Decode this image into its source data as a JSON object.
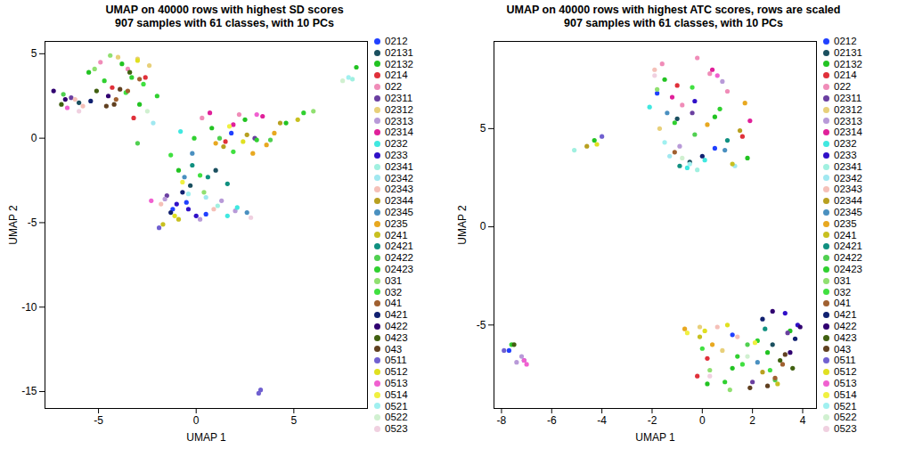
{
  "chart_data": [
    {
      "type": "scatter",
      "title": "UMAP on 40000 rows with highest SD scores",
      "subtitle": "907 samples with 61 classes, with 10 PCs",
      "x_label": "UMAP 1",
      "y_label": "UMAP 2",
      "xlim": [
        -7.74,
        8.77
      ],
      "ylim": [
        -16.0,
        5.73
      ],
      "xticks": [
        -5,
        0,
        5
      ],
      "yticks": [
        -15,
        -10,
        -5,
        0,
        5
      ],
      "legend": "right",
      "series": [
        {
          "name": "0212",
          "color": "#2040ff",
          "x": [
            -1.2,
            0.5,
            1.8,
            -0.5
          ],
          "y": [
            -4.2,
            -4.5,
            0.3,
            -3.8
          ]
        },
        {
          "name": "02131",
          "color": "#1a4f5f",
          "x": [
            -0.3,
            1.0,
            -6.0
          ],
          "y": [
            -2.8,
            -1.9,
            2.1
          ]
        },
        {
          "name": "02132",
          "color": "#22c322",
          "x": [
            -5.5,
            -3.8,
            -2.9,
            0.8,
            2.5,
            8.2,
            -0.9,
            4.6
          ],
          "y": [
            3.9,
            4.4,
            2.0,
            0.6,
            1.1,
            4.2,
            -1.9,
            0.9
          ]
        },
        {
          "name": "0214",
          "color": "#e0303a",
          "x": [
            -2.6,
            -4.3,
            1.5,
            -3.2
          ],
          "y": [
            3.6,
            3.0,
            -0.2,
            1.2
          ]
        },
        {
          "name": "022",
          "color": "#f08cb8",
          "x": [
            -4.9,
            -3.5,
            0.3,
            2.2
          ],
          "y": [
            4.5,
            4.1,
            1.2,
            1.4
          ]
        },
        {
          "name": "02311",
          "color": "#6a3fa0",
          "x": [
            -6.4,
            -1.5,
            3.0
          ],
          "y": [
            2.4,
            -3.4,
            0.0
          ]
        },
        {
          "name": "02312",
          "color": "#e8d07a",
          "x": [
            -4.0,
            -3.0,
            -2.4
          ],
          "y": [
            4.8,
            4.7,
            4.3
          ]
        },
        {
          "name": "02313",
          "color": "#b89ad8",
          "x": [
            -1.6,
            0.2,
            2.0,
            1.3
          ],
          "y": [
            -3.6,
            -4.8,
            -4.3,
            -3.7
          ]
        },
        {
          "name": "02314",
          "color": "#e0209a",
          "x": [
            0.7,
            1.9,
            3.4
          ],
          "y": [
            1.5,
            0.8,
            1.3
          ]
        },
        {
          "name": "0232",
          "color": "#40e8e0",
          "x": [
            1.6,
            -0.8,
            2.1
          ],
          "y": [
            -4.6,
            0.4,
            -4.1
          ]
        },
        {
          "name": "0233",
          "color": "#3010c8",
          "x": [
            -1.0,
            0.0,
            -0.4
          ],
          "y": [
            -3.9,
            -4.6,
            -4.2
          ]
        },
        {
          "name": "02341",
          "color": "#a0f0e0",
          "x": [
            1.1,
            8.0
          ],
          "y": [
            -4.0,
            3.5
          ]
        },
        {
          "name": "02342",
          "color": "#a0e8f0",
          "x": [
            0.5,
            -2.2
          ],
          "y": [
            -3.5,
            0.9
          ]
        },
        {
          "name": "02343",
          "color": "#f5c0b8",
          "x": [
            -5.8,
            -6.2,
            -1.8,
            0.9
          ],
          "y": [
            1.9,
            2.3,
            -3.9,
            -4.2
          ]
        },
        {
          "name": "02344",
          "color": "#b8a020",
          "x": [
            2.6,
            4.3,
            1.4
          ],
          "y": [
            0.2,
            0.9,
            -0.5
          ]
        },
        {
          "name": "02345",
          "color": "#4a90c0",
          "x": [
            -0.6,
            2.6,
            -0.2
          ],
          "y": [
            -2.3,
            -4.4,
            -0.9
          ]
        },
        {
          "name": "0235",
          "color": "#e8a820",
          "x": [
            1.0,
            3.6,
            4.0,
            2.9
          ],
          "y": [
            -0.3,
            -0.4,
            0.3,
            -0.9
          ]
        },
        {
          "name": "0241",
          "color": "#c8c020",
          "x": [
            -0.9,
            5.2,
            -1.7
          ],
          "y": [
            -4.8,
            1.1,
            -5.1
          ]
        },
        {
          "name": "02421",
          "color": "#109080",
          "x": [
            -0.2,
            0.6,
            1.6
          ],
          "y": [
            -1.6,
            -2.3,
            -2.7
          ]
        },
        {
          "name": "02422",
          "color": "#50d050",
          "x": [
            -6.8,
            -3.0,
            1.2,
            3.8
          ],
          "y": [
            2.6,
            -0.3,
            0.0,
            -0.1
          ]
        },
        {
          "name": "02423",
          "color": "#30d030",
          "x": [
            -4.7,
            -3.3,
            -2.0,
            -0.1,
            5.5,
            3.1
          ],
          "y": [
            3.4,
            3.6,
            2.5,
            0.0,
            1.5,
            -0.1
          ]
        },
        {
          "name": "031",
          "color": "#90e070",
          "x": [
            -5.2,
            -4.4,
            0.4,
            6.0
          ],
          "y": [
            4.1,
            4.9,
            -3.2,
            1.6
          ]
        },
        {
          "name": "032",
          "color": "#40e040",
          "x": [
            -3.6,
            -2.7,
            1.9,
            -1.3,
            0.2
          ],
          "y": [
            2.7,
            3.2,
            -0.8,
            -1.0,
            -2.2
          ]
        },
        {
          "name": "041",
          "color": "#a06030",
          "x": [
            -4.1,
            -3.5,
            -2.9
          ],
          "y": [
            2.3,
            2.8,
            3.5
          ]
        },
        {
          "name": "0421",
          "color": "#102070",
          "x": [
            -5.4,
            -1.3,
            -0.7
          ],
          "y": [
            2.2,
            -4.4,
            -3.2
          ]
        },
        {
          "name": "0422",
          "color": "#300070",
          "x": [
            -7.3,
            -6.7,
            -4.5
          ],
          "y": [
            2.8,
            2.3,
            2.5
          ]
        },
        {
          "name": "0423",
          "color": "#406010",
          "x": [
            -6.9,
            -5.1,
            -3.4
          ],
          "y": [
            2.0,
            2.8,
            3.9
          ]
        },
        {
          "name": "043",
          "color": "#604020",
          "x": [
            -4.6,
            -3.9,
            -4.2
          ],
          "y": [
            1.9,
            2.9,
            2.0
          ]
        },
        {
          "name": "0511",
          "color": "#7060d0",
          "x": [
            3.2,
            3.3,
            -1.9
          ],
          "y": [
            -15.1,
            -14.9,
            -5.3
          ]
        },
        {
          "name": "0512",
          "color": "#e0e020",
          "x": [
            -1.1,
            2.4,
            -3.0
          ],
          "y": [
            -4.6,
            -0.2,
            4.6
          ]
        },
        {
          "name": "0513",
          "color": "#f060d0",
          "x": [
            -2.3,
            3.1,
            -6.6
          ],
          "y": [
            -3.7,
            1.4,
            1.8
          ]
        },
        {
          "name": "0514",
          "color": "#f0f040",
          "x": [
            1.7,
            -0.7
          ],
          "y": [
            0.7,
            -2.6
          ]
        },
        {
          "name": "0521",
          "color": "#a0f0f0",
          "x": [
            7.8,
            -0.4
          ],
          "y": [
            3.6,
            -3.3
          ]
        },
        {
          "name": "0522",
          "color": "#d0f0d0",
          "x": [
            7.5,
            -2.5
          ],
          "y": [
            3.4,
            1.6
          ]
        },
        {
          "name": "0523",
          "color": "#f0d0e0",
          "x": [
            -6.0,
            2.8
          ],
          "y": [
            1.6,
            -4.7
          ]
        }
      ]
    },
    {
      "type": "scatter",
      "title": "UMAP on 40000 rows with highest ATC scores, rows are scaled",
      "subtitle": "907 samples with 61 classes, with 10 PCs",
      "x_label": "UMAP 1",
      "y_label": "UMAP 2",
      "xlim": [
        -8.3,
        4.55
      ],
      "ylim": [
        -9.25,
        9.44
      ],
      "xticks": [
        -8,
        -6,
        -4,
        -2,
        0,
        2,
        4
      ],
      "yticks": [
        -5,
        0,
        5
      ],
      "legend": "right",
      "series": [
        {
          "name": "0212",
          "color": "#2040ff",
          "x": [
            -1.8,
            1.2,
            0.5,
            -7.7
          ],
          "y": [
            6.8,
            -5.5,
            4.0,
            -6.3
          ]
        },
        {
          "name": "02131",
          "color": "#1a4f5f",
          "x": [
            -0.5,
            2.8,
            -1.0
          ],
          "y": [
            3.3,
            -6.0,
            5.5
          ]
        },
        {
          "name": "02132",
          "color": "#22c322",
          "x": [
            -1.5,
            0.5,
            1.8,
            1.2,
            2.6,
            -4.3,
            0.2,
            3.5
          ],
          "y": [
            7.5,
            5.6,
            3.5,
            -7.2,
            -6.4,
            4.4,
            -8.0,
            -5.3
          ]
        },
        {
          "name": "0214",
          "color": "#e0303a",
          "x": [
            -1.0,
            1.6,
            0.2,
            -0.2
          ],
          "y": [
            7.2,
            4.6,
            -6.7,
            -7.6
          ]
        },
        {
          "name": "022",
          "color": "#f08cb8",
          "x": [
            -1.6,
            -0.2,
            0.3,
            -0.8,
            1.0
          ],
          "y": [
            8.3,
            8.6,
            7.8,
            6.2,
            6.9
          ]
        },
        {
          "name": "02311",
          "color": "#6a3fa0",
          "x": [
            -0.4,
            2.0,
            3.4
          ],
          "y": [
            5.8,
            -7.9,
            -5.4
          ]
        },
        {
          "name": "02312",
          "color": "#e8d07a",
          "x": [
            -1.7,
            -0.1,
            0.8
          ],
          "y": [
            5.0,
            -5.1,
            -6.3
          ]
        },
        {
          "name": "02313",
          "color": "#b89ad8",
          "x": [
            -0.9,
            0.8,
            -7.2,
            -7.4
          ],
          "y": [
            4.1,
            7.4,
            -6.6,
            -6.9
          ]
        },
        {
          "name": "02314",
          "color": "#e0209a",
          "x": [
            -1.2,
            0.4,
            1.9
          ],
          "y": [
            6.6,
            8.0,
            5.4
          ]
        },
        {
          "name": "0232",
          "color": "#40e8e0",
          "x": [
            -0.6,
            0.1,
            -2.1
          ],
          "y": [
            3.0,
            3.4,
            6.1
          ]
        },
        {
          "name": "0233",
          "color": "#3010c8",
          "x": [
            3.8,
            3.3,
            -0.3
          ],
          "y": [
            -5.0,
            -4.4,
            6.4
          ]
        },
        {
          "name": "02341",
          "color": "#a0f0e0",
          "x": [
            -0.2,
            -5.1
          ],
          "y": [
            2.9,
            3.9
          ]
        },
        {
          "name": "02342",
          "color": "#a0e8f0",
          "x": [
            -1.3,
            1.3
          ],
          "y": [
            3.6,
            3.1
          ]
        },
        {
          "name": "02343",
          "color": "#f5c0b8",
          "x": [
            -1.9,
            0.6,
            1.4
          ],
          "y": [
            8.0,
            -5.1,
            -5.6
          ]
        },
        {
          "name": "02344",
          "color": "#b8a020",
          "x": [
            1.5,
            2.4,
            -4.6
          ],
          "y": [
            4.9,
            -7.4,
            4.1
          ]
        },
        {
          "name": "02345",
          "color": "#4a90c0",
          "x": [
            -1.4,
            0.9,
            2.2
          ],
          "y": [
            5.8,
            3.9,
            -6.9
          ]
        },
        {
          "name": "0235",
          "color": "#e8a820",
          "x": [
            0.2,
            1.7,
            -0.7,
            0.4
          ],
          "y": [
            5.2,
            6.3,
            -5.2,
            -6.0
          ]
        },
        {
          "name": "0241",
          "color": "#c8c020",
          "x": [
            1.2,
            -0.1,
            3.0
          ],
          "y": [
            3.2,
            -5.6,
            -8.0
          ]
        },
        {
          "name": "02421",
          "color": "#109080",
          "x": [
            -0.9,
            1.0,
            2.5
          ],
          "y": [
            3.1,
            4.4,
            -5.2
          ]
        },
        {
          "name": "02422",
          "color": "#50d050",
          "x": [
            -0.3,
            1.8,
            2.9
          ],
          "y": [
            4.7,
            -6.0,
            -7.8
          ]
        },
        {
          "name": "02423",
          "color": "#30d030",
          "x": [
            -1.1,
            0.7,
            1.4,
            2.2,
            0.9,
            -7.6
          ],
          "y": [
            5.3,
            6.0,
            -6.6,
            -5.8,
            -7.9,
            -6.0
          ]
        },
        {
          "name": "031",
          "color": "#90e070",
          "x": [
            -1.8,
            0.3,
            1.1
          ],
          "y": [
            7.0,
            -7.3,
            -8.3
          ]
        },
        {
          "name": "032",
          "color": "#40e040",
          "x": [
            -0.4,
            1.6,
            2.7,
            0.0
          ],
          "y": [
            7.1,
            -7.0,
            -7.3,
            -6.2
          ]
        },
        {
          "name": "041",
          "color": "#a06030",
          "x": [
            2.9,
            3.2,
            -1.1
          ],
          "y": [
            -7.7,
            -7.0,
            3.8
          ]
        },
        {
          "name": "0421",
          "color": "#102070",
          "x": [
            3.7,
            2.4,
            0.0
          ],
          "y": [
            -5.7,
            -4.7,
            3.6
          ]
        },
        {
          "name": "0422",
          "color": "#300070",
          "x": [
            3.9,
            3.5,
            2.8
          ],
          "y": [
            -5.1,
            -6.4,
            -4.3
          ]
        },
        {
          "name": "0423",
          "color": "#406010",
          "x": [
            3.1,
            3.6,
            -7.5
          ],
          "y": [
            -6.8,
            -7.2,
            -6.0
          ]
        },
        {
          "name": "043",
          "color": "#604020",
          "x": [
            2.6,
            3.3,
            1.9
          ],
          "y": [
            -8.1,
            -6.5,
            -8.2
          ]
        },
        {
          "name": "0511",
          "color": "#7060d0",
          "x": [
            -7.9,
            -7.1,
            -4.0
          ],
          "y": [
            -6.3,
            -6.8,
            4.6
          ]
        },
        {
          "name": "0512",
          "color": "#e0e020",
          "x": [
            -4.2,
            0.1,
            1.0
          ],
          "y": [
            4.2,
            -5.3,
            -5.0
          ]
        },
        {
          "name": "0513",
          "color": "#f060d0",
          "x": [
            -7.1,
            -7.0,
            0.6
          ],
          "y": [
            -6.8,
            -7.0,
            7.7
          ]
        },
        {
          "name": "0514",
          "color": "#f0f040",
          "x": [
            -0.6,
            2.1
          ],
          "y": [
            -5.4,
            -5.9
          ]
        },
        {
          "name": "0521",
          "color": "#a0f0f0",
          "x": [
            -0.5,
            -1.5
          ],
          "y": [
            3.2,
            4.3
          ]
        },
        {
          "name": "0522",
          "color": "#d0f0d0",
          "x": [
            -0.8,
            1.8
          ],
          "y": [
            3.5,
            -6.6
          ]
        },
        {
          "name": "0523",
          "color": "#f0d0e0",
          "x": [
            -1.9,
            0.3
          ],
          "y": [
            7.7,
            -7.6
          ]
        }
      ]
    }
  ]
}
